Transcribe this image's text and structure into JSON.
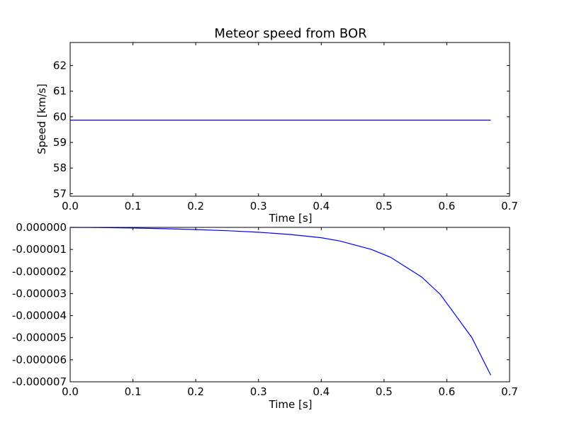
{
  "colors": {
    "series": "#0000ff",
    "axes": "#000000",
    "background": "#ffffff"
  },
  "chart_data": [
    {
      "type": "line",
      "title": "Meteor speed from BOR",
      "xlabel": "Time [s]",
      "ylabel": "Speed [km/s]",
      "xlim": [
        0.0,
        0.7
      ],
      "ylim": [
        56.9,
        62.9
      ],
      "xticks": [
        0.0,
        0.1,
        0.2,
        0.3,
        0.4,
        0.5,
        0.6,
        0.7
      ],
      "xtick_labels": [
        "0.0",
        "0.1",
        "0.2",
        "0.3",
        "0.4",
        "0.5",
        "0.6",
        "0.7"
      ],
      "yticks": [
        57,
        58,
        59,
        60,
        61,
        62
      ],
      "ytick_labels": [
        "57",
        "58",
        "59",
        "60",
        "61",
        "62"
      ],
      "grid": false,
      "series": [
        {
          "x": [
            0.0,
            0.67
          ],
          "y": [
            59.87,
            59.87
          ]
        }
      ]
    },
    {
      "type": "line",
      "title": "",
      "xlabel": "Time [s]",
      "ylabel": "",
      "xlim": [
        0.0,
        0.7
      ],
      "ylim": [
        -7e-06,
        0.0
      ],
      "xticks": [
        0.0,
        0.1,
        0.2,
        0.3,
        0.4,
        0.5,
        0.6,
        0.7
      ],
      "xtick_labels": [
        "0.0",
        "0.1",
        "0.2",
        "0.3",
        "0.4",
        "0.5",
        "0.6",
        "0.7"
      ],
      "yticks": [
        0.0,
        -1e-06,
        -2e-06,
        -3e-06,
        -4e-06,
        -5e-06,
        -6e-06,
        -7e-06
      ],
      "ytick_labels": [
        "0.000000",
        "-0.000001",
        "-0.000002",
        "-0.000003",
        "-0.000004",
        "-0.000005",
        "-0.000006",
        "-0.000007"
      ],
      "grid": false,
      "series": [
        {
          "x": [
            0.0,
            0.05,
            0.1,
            0.15,
            0.2,
            0.25,
            0.3,
            0.35,
            0.4,
            0.43,
            0.48,
            0.51,
            0.56,
            0.59,
            0.64,
            0.67
          ],
          "y": [
            0.0,
            -1e-08,
            -3e-08,
            -6e-08,
            -1e-07,
            -1.5e-07,
            -2.2e-07,
            -3.2e-07,
            -4.7e-07,
            -6.2e-07,
            -1e-06,
            -1.35e-06,
            -2.25e-06,
            -3.05e-06,
            -5e-06,
            -6.7e-06
          ]
        }
      ]
    }
  ]
}
